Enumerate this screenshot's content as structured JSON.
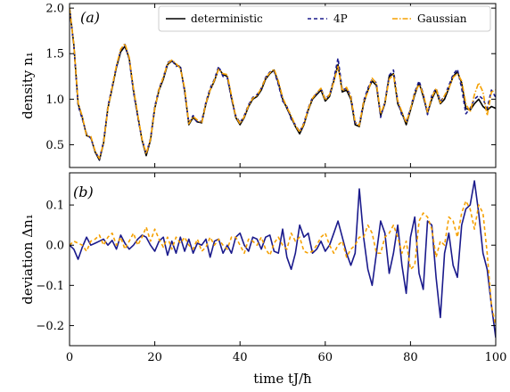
{
  "chart_data": [
    {
      "type": "line",
      "panel_label": "(a)",
      "ylabel": "density n₁",
      "xlim": [
        0,
        100
      ],
      "ylim": [
        0.25,
        2.05
      ],
      "xticks": [
        0,
        20,
        40,
        60,
        80,
        100
      ],
      "xtick_labels": [
        "",
        "",
        "",
        "",
        "",
        ""
      ],
      "yticks": [
        0.5,
        1.0,
        1.5,
        2.0
      ],
      "ytick_labels": [
        "0.5",
        "1.0",
        "1.5",
        "2.0"
      ],
      "legend": {
        "position": "top-right",
        "entries": [
          "deterministic",
          "4P",
          "Gaussian"
        ]
      },
      "series": [
        {
          "name": "deterministic",
          "color": "#000000",
          "style": "solid",
          "x": [
            0,
            1,
            2,
            3,
            4,
            5,
            6,
            7,
            8,
            9,
            10,
            11,
            12,
            13,
            14,
            15,
            16,
            17,
            18,
            19,
            20,
            21,
            22,
            23,
            24,
            25,
            26,
            27,
            28,
            29,
            30,
            31,
            32,
            33,
            34,
            35,
            36,
            37,
            38,
            39,
            40,
            41,
            42,
            43,
            44,
            45,
            46,
            47,
            48,
            49,
            50,
            51,
            52,
            53,
            54,
            55,
            56,
            57,
            58,
            59,
            60,
            61,
            62,
            63,
            64,
            65,
            66,
            67,
            68,
            69,
            70,
            71,
            72,
            73,
            74,
            75,
            76,
            77,
            78,
            79,
            80,
            81,
            82,
            83,
            84,
            85,
            86,
            87,
            88,
            89,
            90,
            91,
            92,
            93,
            94,
            95,
            96,
            97,
            98,
            99,
            100
          ],
          "y": [
            2.0,
            1.6,
            0.95,
            0.8,
            0.6,
            0.58,
            0.42,
            0.33,
            0.52,
            0.9,
            1.12,
            1.35,
            1.52,
            1.58,
            1.45,
            1.1,
            0.82,
            0.55,
            0.38,
            0.55,
            0.9,
            1.1,
            1.22,
            1.38,
            1.42,
            1.38,
            1.35,
            1.1,
            0.72,
            0.8,
            0.75,
            0.74,
            0.95,
            1.1,
            1.2,
            1.34,
            1.27,
            1.25,
            1.02,
            0.8,
            0.72,
            0.8,
            0.92,
            1.0,
            1.03,
            1.1,
            1.22,
            1.28,
            1.32,
            1.18,
            1.0,
            0.9,
            0.8,
            0.7,
            0.62,
            0.72,
            0.88,
            1.0,
            1.05,
            1.1,
            0.98,
            1.03,
            1.2,
            1.38,
            1.08,
            1.1,
            1.0,
            0.72,
            0.7,
            0.95,
            1.1,
            1.2,
            1.15,
            0.82,
            0.95,
            1.25,
            1.28,
            0.95,
            0.85,
            0.72,
            0.88,
            1.05,
            1.18,
            1.03,
            0.85,
            1.0,
            1.1,
            0.95,
            1.0,
            1.12,
            1.25,
            1.3,
            1.18,
            0.9,
            0.88,
            0.95,
            1.0,
            0.92,
            0.88,
            0.92,
            0.9
          ]
        },
        {
          "name": "4P",
          "color": "#1a1a8c",
          "style": "dashed",
          "x": [
            0,
            1,
            2,
            3,
            4,
            5,
            6,
            7,
            8,
            9,
            10,
            11,
            12,
            13,
            14,
            15,
            16,
            17,
            18,
            19,
            20,
            21,
            22,
            23,
            24,
            25,
            26,
            27,
            28,
            29,
            30,
            31,
            32,
            33,
            34,
            35,
            36,
            37,
            38,
            39,
            40,
            41,
            42,
            43,
            44,
            45,
            46,
            47,
            48,
            49,
            50,
            51,
            52,
            53,
            54,
            55,
            56,
            57,
            58,
            59,
            60,
            61,
            62,
            63,
            64,
            65,
            66,
            67,
            68,
            69,
            70,
            71,
            72,
            73,
            74,
            75,
            76,
            77,
            78,
            79,
            80,
            81,
            82,
            83,
            84,
            85,
            86,
            87,
            88,
            89,
            90,
            91,
            92,
            93,
            94,
            95,
            96,
            97,
            98,
            99,
            100
          ],
          "y": [
            2.0,
            1.58,
            0.93,
            0.78,
            0.62,
            0.57,
            0.43,
            0.34,
            0.54,
            0.92,
            1.14,
            1.36,
            1.54,
            1.6,
            1.44,
            1.08,
            0.8,
            0.56,
            0.4,
            0.57,
            0.92,
            1.12,
            1.24,
            1.4,
            1.43,
            1.36,
            1.37,
            1.08,
            0.74,
            0.82,
            0.74,
            0.76,
            0.97,
            1.12,
            1.22,
            1.36,
            1.25,
            1.24,
            1.0,
            0.82,
            0.74,
            0.82,
            0.94,
            1.02,
            1.05,
            1.12,
            1.24,
            1.3,
            1.31,
            1.16,
            0.98,
            0.92,
            0.78,
            0.72,
            0.64,
            0.74,
            0.9,
            1.02,
            1.06,
            1.12,
            1.0,
            1.05,
            1.22,
            1.45,
            1.1,
            1.12,
            1.04,
            0.74,
            0.72,
            0.98,
            1.12,
            1.22,
            1.18,
            0.8,
            0.97,
            1.26,
            1.32,
            0.98,
            0.82,
            0.75,
            0.9,
            1.08,
            1.2,
            1.06,
            0.83,
            1.04,
            1.12,
            0.98,
            1.03,
            1.15,
            1.27,
            1.33,
            1.12,
            0.84,
            0.9,
            1.0,
            1.04,
            1.0,
            0.9,
            1.1,
            1.02
          ]
        },
        {
          "name": "Gaussian",
          "color": "#f5a000",
          "style": "dashdot",
          "x": [
            0,
            1,
            2,
            3,
            4,
            5,
            6,
            7,
            8,
            9,
            10,
            11,
            12,
            13,
            14,
            15,
            16,
            17,
            18,
            19,
            20,
            21,
            22,
            23,
            24,
            25,
            26,
            27,
            28,
            29,
            30,
            31,
            32,
            33,
            34,
            35,
            36,
            37,
            38,
            39,
            40,
            41,
            42,
            43,
            44,
            45,
            46,
            47,
            48,
            49,
            50,
            51,
            52,
            53,
            54,
            55,
            56,
            57,
            58,
            59,
            60,
            61,
            62,
            63,
            64,
            65,
            66,
            67,
            68,
            69,
            70,
            71,
            72,
            73,
            74,
            75,
            76,
            77,
            78,
            79,
            80,
            81,
            82,
            83,
            84,
            85,
            86,
            87,
            88,
            89,
            90,
            91,
            92,
            93,
            94,
            95,
            96,
            97,
            98,
            99,
            100
          ],
          "y": [
            2.0,
            1.6,
            0.96,
            0.81,
            0.6,
            0.59,
            0.43,
            0.35,
            0.52,
            0.9,
            1.13,
            1.37,
            1.55,
            1.61,
            1.46,
            1.12,
            0.83,
            0.56,
            0.4,
            0.56,
            0.9,
            1.11,
            1.24,
            1.39,
            1.43,
            1.39,
            1.34,
            1.12,
            0.73,
            0.81,
            0.77,
            0.74,
            0.96,
            1.1,
            1.21,
            1.33,
            1.28,
            1.27,
            1.04,
            0.81,
            0.73,
            0.81,
            0.93,
            1.01,
            1.04,
            1.12,
            1.23,
            1.29,
            1.33,
            1.2,
            1.02,
            0.91,
            0.82,
            0.71,
            0.64,
            0.73,
            0.89,
            1.01,
            1.07,
            1.12,
            0.99,
            1.05,
            1.19,
            1.36,
            1.09,
            1.13,
            1.02,
            0.75,
            0.71,
            0.97,
            1.08,
            1.23,
            1.17,
            0.84,
            0.96,
            1.22,
            1.27,
            0.98,
            0.86,
            0.74,
            0.89,
            1.07,
            1.16,
            1.06,
            0.86,
            1.02,
            1.12,
            0.96,
            1.04,
            1.12,
            1.24,
            1.28,
            1.2,
            0.95,
            0.86,
            1.05,
            1.18,
            1.08,
            0.82,
            1.08,
            1.1
          ]
        }
      ]
    },
    {
      "type": "line",
      "panel_label": "(b)",
      "ylabel": "deviation Δn₁",
      "xlabel": "time tJ/ħ",
      "xlim": [
        0,
        100
      ],
      "ylim": [
        -0.25,
        0.18
      ],
      "xticks": [
        0,
        20,
        40,
        60,
        80,
        100
      ],
      "xtick_labels": [
        "0",
        "20",
        "40",
        "60",
        "80",
        "100"
      ],
      "yticks": [
        -0.2,
        -0.1,
        0.0,
        0.1
      ],
      "ytick_labels": [
        "−0.2",
        "−0.1",
        "0.0",
        "0.1"
      ],
      "series": [
        {
          "name": "4P",
          "color": "#1a1a8c",
          "style": "solid",
          "x": [
            0,
            1,
            2,
            3,
            4,
            5,
            6,
            7,
            8,
            9,
            10,
            11,
            12,
            13,
            14,
            15,
            16,
            17,
            18,
            19,
            20,
            21,
            22,
            23,
            24,
            25,
            26,
            27,
            28,
            29,
            30,
            31,
            32,
            33,
            34,
            35,
            36,
            37,
            38,
            39,
            40,
            41,
            42,
            43,
            44,
            45,
            46,
            47,
            48,
            49,
            50,
            51,
            52,
            53,
            54,
            55,
            56,
            57,
            58,
            59,
            60,
            61,
            62,
            63,
            64,
            65,
            66,
            67,
            68,
            69,
            70,
            71,
            72,
            73,
            74,
            75,
            76,
            77,
            78,
            79,
            80,
            81,
            82,
            83,
            84,
            85,
            86,
            87,
            88,
            89,
            90,
            91,
            92,
            93,
            94,
            95,
            96,
            97,
            98,
            99,
            100
          ],
          "y": [
            0.0,
            -0.01,
            -0.035,
            -0.005,
            0.02,
            0.0,
            0.005,
            0.01,
            0.015,
            0.0,
            0.012,
            -0.01,
            0.025,
            0.005,
            -0.01,
            0.0,
            0.015,
            0.025,
            0.02,
            0.0,
            -0.015,
            0.01,
            0.02,
            -0.025,
            0.01,
            -0.02,
            0.02,
            -0.015,
            0.015,
            -0.02,
            0.005,
            0.0,
            0.015,
            -0.03,
            0.01,
            0.015,
            -0.02,
            0.0,
            -0.02,
            0.02,
            0.03,
            0.0,
            -0.015,
            0.02,
            0.015,
            -0.01,
            0.02,
            0.025,
            -0.015,
            -0.02,
            0.04,
            -0.03,
            -0.06,
            -0.02,
            0.05,
            0.02,
            0.03,
            -0.02,
            -0.01,
            0.01,
            -0.015,
            0.0,
            0.03,
            0.06,
            0.02,
            -0.02,
            -0.05,
            -0.02,
            0.14,
            0.02,
            -0.06,
            -0.1,
            -0.02,
            0.06,
            0.03,
            -0.07,
            -0.02,
            0.05,
            -0.05,
            -0.12,
            0.02,
            0.07,
            -0.07,
            -0.11,
            0.06,
            0.05,
            -0.08,
            -0.18,
            -0.02,
            0.03,
            -0.05,
            -0.08,
            0.05,
            0.09,
            0.1,
            0.16,
            0.08,
            -0.02,
            -0.06,
            -0.15,
            -0.23
          ]
        },
        {
          "name": "Gaussian",
          "color": "#f5a000",
          "style": "dashed",
          "x": [
            0,
            1,
            2,
            3,
            4,
            5,
            6,
            7,
            8,
            9,
            10,
            11,
            12,
            13,
            14,
            15,
            16,
            17,
            18,
            19,
            20,
            21,
            22,
            23,
            24,
            25,
            26,
            27,
            28,
            29,
            30,
            31,
            32,
            33,
            34,
            35,
            36,
            37,
            38,
            39,
            40,
            41,
            42,
            43,
            44,
            45,
            46,
            47,
            48,
            49,
            50,
            51,
            52,
            53,
            54,
            55,
            56,
            57,
            58,
            59,
            60,
            61,
            62,
            63,
            64,
            65,
            66,
            67,
            68,
            69,
            70,
            71,
            72,
            73,
            74,
            75,
            76,
            77,
            78,
            79,
            80,
            81,
            82,
            83,
            84,
            85,
            86,
            87,
            88,
            89,
            90,
            91,
            92,
            93,
            94,
            95,
            96,
            97,
            98,
            99,
            100
          ],
          "y": [
            0.0,
            0.01,
            0.005,
            0.0,
            -0.015,
            0.01,
            0.015,
            0.025,
            0.0,
            0.02,
            0.03,
            0.0,
            0.02,
            -0.01,
            0.01,
            0.03,
            0.0,
            0.02,
            0.045,
            0.01,
            0.04,
            0.015,
            -0.005,
            0.02,
            -0.01,
            0.02,
            0.005,
            0.02,
            0.0,
            -0.01,
            0.015,
            -0.015,
            -0.005,
            0.02,
            0.0,
            0.015,
            0.0,
            -0.01,
            0.02,
            0.02,
            0.0,
            -0.02,
            0.015,
            0.01,
            0.0,
            0.02,
            -0.01,
            -0.025,
            0.005,
            0.02,
            0.0,
            -0.01,
            0.03,
            0.01,
            0.02,
            -0.015,
            -0.02,
            -0.015,
            0.0,
            0.02,
            0.03,
            0.0,
            -0.02,
            0.0,
            0.01,
            -0.03,
            -0.01,
            0.0,
            0.02,
            0.02,
            0.05,
            0.03,
            -0.02,
            -0.02,
            0.02,
            0.03,
            0.05,
            0.02,
            -0.02,
            0.01,
            -0.06,
            -0.05,
            0.06,
            0.08,
            0.07,
            0.04,
            -0.03,
            0.01,
            0.0,
            0.07,
            0.06,
            0.02,
            0.08,
            0.11,
            0.09,
            0.04,
            0.1,
            0.08,
            -0.02,
            -0.15,
            -0.2
          ]
        }
      ]
    }
  ]
}
